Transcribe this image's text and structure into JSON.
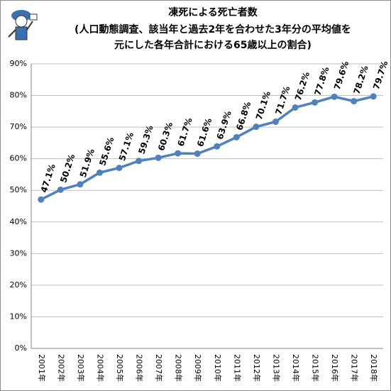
{
  "chart_data": {
    "type": "line",
    "title": "凍死による死亡者数",
    "subtitle": [
      "(人口動態調査、該当年と過去2年を合わせた3年分の平均値を",
      "元にした各年合計における65歳以上の割合)"
    ],
    "categories": [
      "2001年",
      "2002年",
      "2003年",
      "2004年",
      "2005年",
      "2006年",
      "2007年",
      "2008年",
      "2009年",
      "2010年",
      "2011年",
      "2012年",
      "2013年",
      "2014年",
      "2015年",
      "2016年",
      "2017年",
      "2018年"
    ],
    "series": [
      {
        "color": "#4f81bd",
        "values": [
          47.1,
          50.2,
          51.9,
          55.6,
          57.1,
          59.3,
          60.3,
          61.7,
          61.6,
          63.9,
          66.8,
          70.1,
          71.7,
          76.2,
          77.8,
          79.6,
          78.2,
          79.7
        ],
        "value_labels": [
          "47.1%",
          "50.2%",
          "51.9%",
          "55.6%",
          "57.1%",
          "59.3%",
          "60.3%",
          "61.7%",
          "61.6%",
          "63.9%",
          "66.8%",
          "70.1%",
          "71.7%",
          "76.2%",
          "77.8%",
          "79.6%",
          "78.2%",
          "79.7%"
        ]
      }
    ],
    "ylim": [
      0,
      90
    ],
    "yticks": [
      {
        "value": 0,
        "label": "0%"
      },
      {
        "value": 10,
        "label": "10%"
      },
      {
        "value": 20,
        "label": "20%"
      },
      {
        "value": 30,
        "label": "30%"
      },
      {
        "value": 40,
        "label": "40%"
      },
      {
        "value": 50,
        "label": "50%"
      },
      {
        "value": 60,
        "label": "60%"
      },
      {
        "value": 70,
        "label": "70%"
      },
      {
        "value": 80,
        "label": "80%"
      },
      {
        "value": 90,
        "label": "90%"
      }
    ],
    "grid": true
  }
}
